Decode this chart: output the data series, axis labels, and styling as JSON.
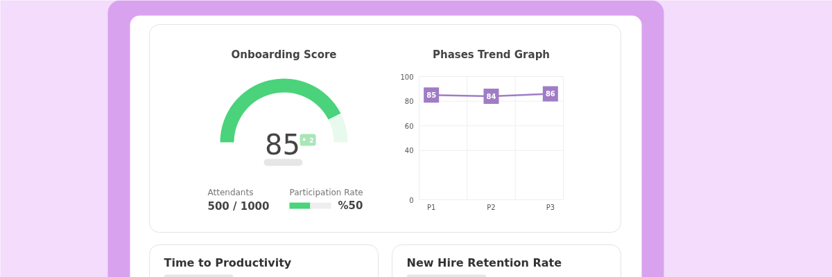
{
  "chart_data": [
    {
      "type": "donut",
      "title": "Onboarding Score",
      "categories": [
        null,
        null
      ],
      "values": [
        85,
        15
      ],
      "colors": [
        "#4ad37a",
        "#e8f9ed"
      ],
      "annotations": [
        "85",
        "2"
      ]
    },
    {
      "type": "other",
      "annotations": [
        "Attendants",
        "500 / 1000"
      ]
    },
    {
      "type": "bar",
      "orientation": "horizontal",
      "stacked": true,
      "title": "Participation Rate",
      "categories": [
        null
      ],
      "series": [
        {
          "color": "#4ad37a",
          "values": [
            50
          ],
          "value_labels": [
            "%50"
          ]
        },
        {
          "color": "#eeeeee",
          "values": [
            50
          ]
        }
      ],
      "xlim": [
        0,
        100
      ],
      "tick_labels": false
    },
    {
      "type": "line",
      "title": "Phases Trend Graph",
      "categories": [
        "P1",
        "P2",
        "P3"
      ],
      "series": [
        {
          "color": "#a07cc5",
          "values": [
            85,
            84,
            86
          ]
        }
      ],
      "ylim": [
        0,
        100
      ],
      "yticks": [
        0,
        40,
        60,
        80,
        100
      ],
      "grid": true,
      "data_labels": true,
      "marker": "square"
    },
    {
      "type": "other",
      "annotations": [
        "Time to Productivity",
        "New Hire Retention Rate"
      ]
    }
  ]
}
